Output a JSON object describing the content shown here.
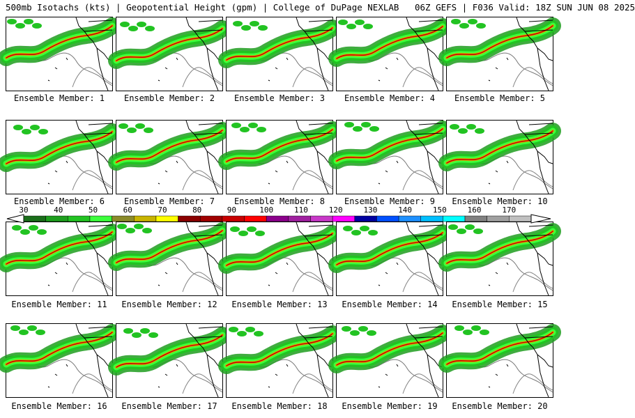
{
  "header": {
    "title": "500mb Isotachs (kts) | Geopotential Height (gpm) | College of DuPage NEXLAB   06Z GEFS | F036 Valid: 18Z SUN JUN 08 2025"
  },
  "members": [
    "Ensemble Member: 1",
    "Ensemble Member: 2",
    "Ensemble Member: 3",
    "Ensemble Member: 4",
    "Ensemble Member: 5",
    "Ensemble Member: 6",
    "Ensemble Member: 7",
    "Ensemble Member: 8",
    "Ensemble Member: 9",
    "Ensemble Member: 10",
    "Ensemble Member: 11",
    "Ensemble Member: 12",
    "Ensemble Member: 13",
    "Ensemble Member: 14",
    "Ensemble Member: 15",
    "Ensemble Member: 16",
    "Ensemble Member: 17",
    "Ensemble Member: 18",
    "Ensemble Member: 19",
    "Ensemble Member: 20"
  ],
  "legend": {
    "labels": [
      "30",
      "40",
      "50",
      "60",
      "70",
      "80",
      "90",
      "100",
      "110",
      "120",
      "130",
      "140",
      "150",
      "160",
      "170"
    ],
    "colors": [
      "#1a6e1a",
      "#1e9e1e",
      "#22c322",
      "#3cff3c",
      "#8b8b2a",
      "#c8b400",
      "#ffff00",
      "#8b0000",
      "#a00000",
      "#c80000",
      "#ff0000",
      "#8b008b",
      "#a020a0",
      "#c838c8",
      "#ff00ff",
      "#0000a0",
      "#0050ff",
      "#1e90ff",
      "#00bfff",
      "#00ffff",
      "#808080",
      "#a0a0a0",
      "#c0c0c0"
    ]
  }
}
